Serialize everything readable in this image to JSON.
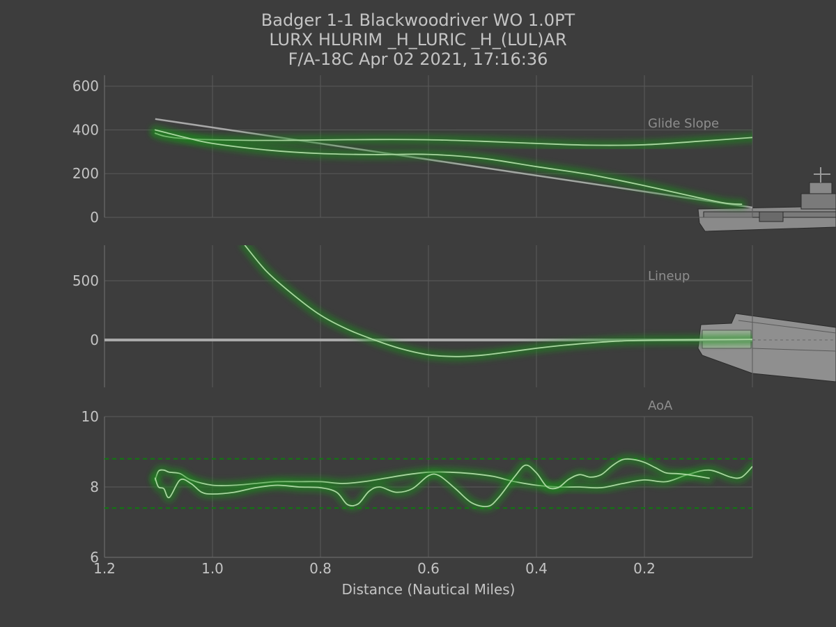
{
  "title_lines": [
    "Badger 1-1 Blackwoodriver WO 1.0PT",
    "LURX HLURIM  _H_LURIC _H_(LUL)AR",
    "F/A-18C Apr 02 2021, 17:16:36"
  ],
  "colors": {
    "background": "#3d3d3d",
    "text": "#c4c4c4",
    "grid": "#5a5a5a",
    "trace": "#a9d6a0",
    "glow": "#1f8a1f",
    "reference": "#b4b4b4",
    "limits": "#0f7a0f",
    "panel_label": "#8e8e8e"
  },
  "chart_data": [
    {
      "type": "line",
      "panel": "glide-slope",
      "label": "Glide Slope",
      "xlim": [
        1.2,
        0.0
      ],
      "ylim": [
        0,
        650
      ],
      "x_ticks": [
        1.2,
        1.0,
        0.8,
        0.6,
        0.4,
        0.2
      ],
      "y_ticks": [
        0,
        200,
        400,
        600
      ],
      "y_tick_labels": [
        "0",
        "200",
        "400",
        "600"
      ],
      "reference": {
        "x": [
          1.106,
          0.0
        ],
        "y": [
          450,
          45
        ]
      },
      "series": [
        {
          "x": [
            1.106,
            1.09,
            1.06,
            1.0,
            0.9,
            0.8,
            0.7,
            0.6,
            0.5,
            0.4,
            0.3,
            0.2,
            0.1,
            0.0
          ],
          "y": [
            385,
            372,
            362,
            355,
            352,
            354,
            356,
            355,
            348,
            338,
            330,
            332,
            348,
            365
          ]
        },
        {
          "x": [
            1.106,
            1.09,
            1.05,
            1.0,
            0.9,
            0.8,
            0.7,
            0.6,
            0.5,
            0.4,
            0.3,
            0.2,
            0.1,
            0.05,
            0.02
          ],
          "y": [
            400,
            390,
            365,
            338,
            308,
            292,
            287,
            288,
            270,
            232,
            195,
            145,
            90,
            65,
            60
          ]
        }
      ]
    },
    {
      "type": "line",
      "panel": "lineup",
      "label": "Lineup",
      "xlim": [
        1.2,
        0.0
      ],
      "ylim": [
        -400,
        800
      ],
      "x_ticks": [
        1.2,
        1.0,
        0.8,
        0.6,
        0.4,
        0.2
      ],
      "y_ticks": [
        0,
        500
      ],
      "y_tick_labels": [
        "0",
        "500"
      ],
      "reference": {
        "x": [
          1.2,
          0.0
        ],
        "y": [
          0,
          0
        ]
      },
      "series": [
        {
          "x": [
            0.94,
            0.9,
            0.85,
            0.8,
            0.75,
            0.7,
            0.65,
            0.6,
            0.55,
            0.5,
            0.45,
            0.4,
            0.35,
            0.3,
            0.25,
            0.2,
            0.15,
            0.1,
            0.05,
            0.0
          ],
          "y": [
            800,
            580,
            380,
            210,
            90,
            0,
            -75,
            -125,
            -140,
            -128,
            -100,
            -70,
            -45,
            -25,
            -10,
            -3,
            0,
            2,
            3,
            5
          ]
        }
      ]
    },
    {
      "type": "line",
      "panel": "aoa",
      "label": "AoA",
      "xlim": [
        1.2,
        0.0
      ],
      "ylim": [
        6,
        10
      ],
      "x_ticks": [
        1.2,
        1.0,
        0.8,
        0.6,
        0.4,
        0.2
      ],
      "x_tick_labels": [
        "1.2",
        "1.0",
        "0.8",
        "0.6",
        "0.4",
        "0.2"
      ],
      "xlabel": "Distance (Nautical Miles)",
      "y_ticks": [
        6,
        8,
        10
      ],
      "y_tick_labels": [
        "6",
        "8",
        "10"
      ],
      "limit_lines": [
        8.8,
        7.4
      ],
      "series": [
        {
          "x": [
            1.106,
            1.1,
            1.09,
            1.08,
            1.06,
            1.04,
            1.0,
            0.96,
            0.92,
            0.88,
            0.84,
            0.8,
            0.76,
            0.72,
            0.68,
            0.64,
            0.6,
            0.56,
            0.52,
            0.48,
            0.44,
            0.4,
            0.36,
            0.32,
            0.28,
            0.24,
            0.2,
            0.16,
            0.12,
            0.08,
            0.04,
            0.02,
            0.0
          ],
          "y": [
            8.2,
            8.45,
            8.48,
            8.42,
            8.38,
            8.2,
            8.05,
            8.05,
            8.1,
            8.15,
            8.15,
            8.15,
            8.1,
            8.15,
            8.25,
            8.35,
            8.42,
            8.42,
            8.38,
            8.3,
            8.15,
            8.05,
            8.0,
            8.0,
            7.98,
            8.1,
            8.2,
            8.15,
            8.35,
            8.48,
            8.28,
            8.28,
            8.58
          ]
        },
        {
          "x": [
            1.106,
            1.1,
            1.09,
            1.08,
            1.06,
            1.04,
            1.02,
            1.0,
            0.96,
            0.92,
            0.88,
            0.84,
            0.8,
            0.77,
            0.75,
            0.73,
            0.71,
            0.69,
            0.66,
            0.63,
            0.6,
            0.58,
            0.55,
            0.52,
            0.49,
            0.47,
            0.44,
            0.42,
            0.4,
            0.38,
            0.36,
            0.34,
            0.32,
            0.3,
            0.28,
            0.26,
            0.24,
            0.22,
            0.2,
            0.18,
            0.16,
            0.14,
            0.12,
            0.1,
            0.08
          ],
          "y": [
            8.25,
            8.0,
            7.95,
            7.7,
            8.2,
            8.1,
            7.85,
            7.8,
            7.85,
            7.98,
            8.05,
            8.0,
            7.98,
            7.85,
            7.5,
            7.52,
            7.88,
            8.0,
            7.85,
            7.95,
            8.32,
            8.32,
            7.95,
            7.55,
            7.45,
            7.7,
            8.3,
            8.62,
            8.4,
            8.0,
            7.98,
            8.22,
            8.35,
            8.28,
            8.35,
            8.6,
            8.78,
            8.78,
            8.7,
            8.55,
            8.4,
            8.38,
            8.35,
            8.3,
            8.25
          ]
        }
      ]
    }
  ]
}
